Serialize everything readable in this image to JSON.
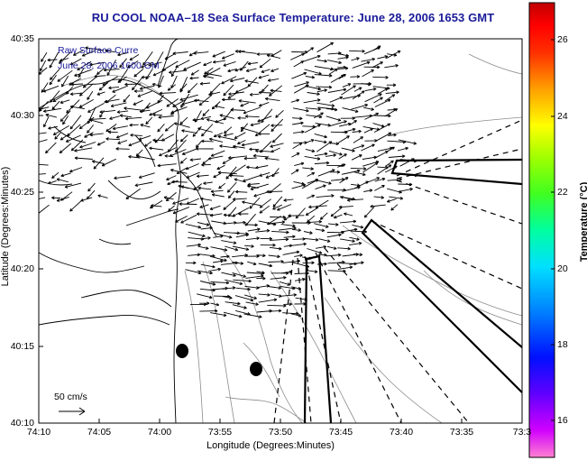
{
  "title": "RU COOL  NOAA–18  Sea Surface Temperature:  June 28, 2006 1653 GMT",
  "axes": {
    "xlabel": "Longitude (Degrees:Minutes)",
    "ylabel": "Latitude (Degrees:Minutes)",
    "xticks": [
      "74:10",
      "74:05",
      "74:00",
      "73:55",
      "73:50",
      "73:45",
      "73:40",
      "73:35",
      "73:3"
    ],
    "yticks": [
      "40:35",
      "40:30",
      "40:25",
      "40:20",
      "40:15",
      "40:10"
    ]
  },
  "legend": {
    "line1": "Raw Surface Curre",
    "line2": "June 28, 2006 1600 GM"
  },
  "scale": {
    "label": "50 cm/s"
  },
  "colorbar": {
    "label": "Temperature (°C)",
    "ticks": [
      "26",
      "24",
      "22",
      "20",
      "18",
      "16"
    ],
    "colors": [
      "#ff7fd4",
      "#ff0000",
      "#ff7f00",
      "#ffff00",
      "#7fff00",
      "#00ff00",
      "#00ffa0",
      "#00ffff",
      "#007fff",
      "#0000ff",
      "#7f00ff",
      "#ff00ff"
    ]
  },
  "colors": {
    "title": "#1a1a9a",
    "coast": "#000000",
    "contour": "#808080",
    "vectors": "#000000"
  }
}
